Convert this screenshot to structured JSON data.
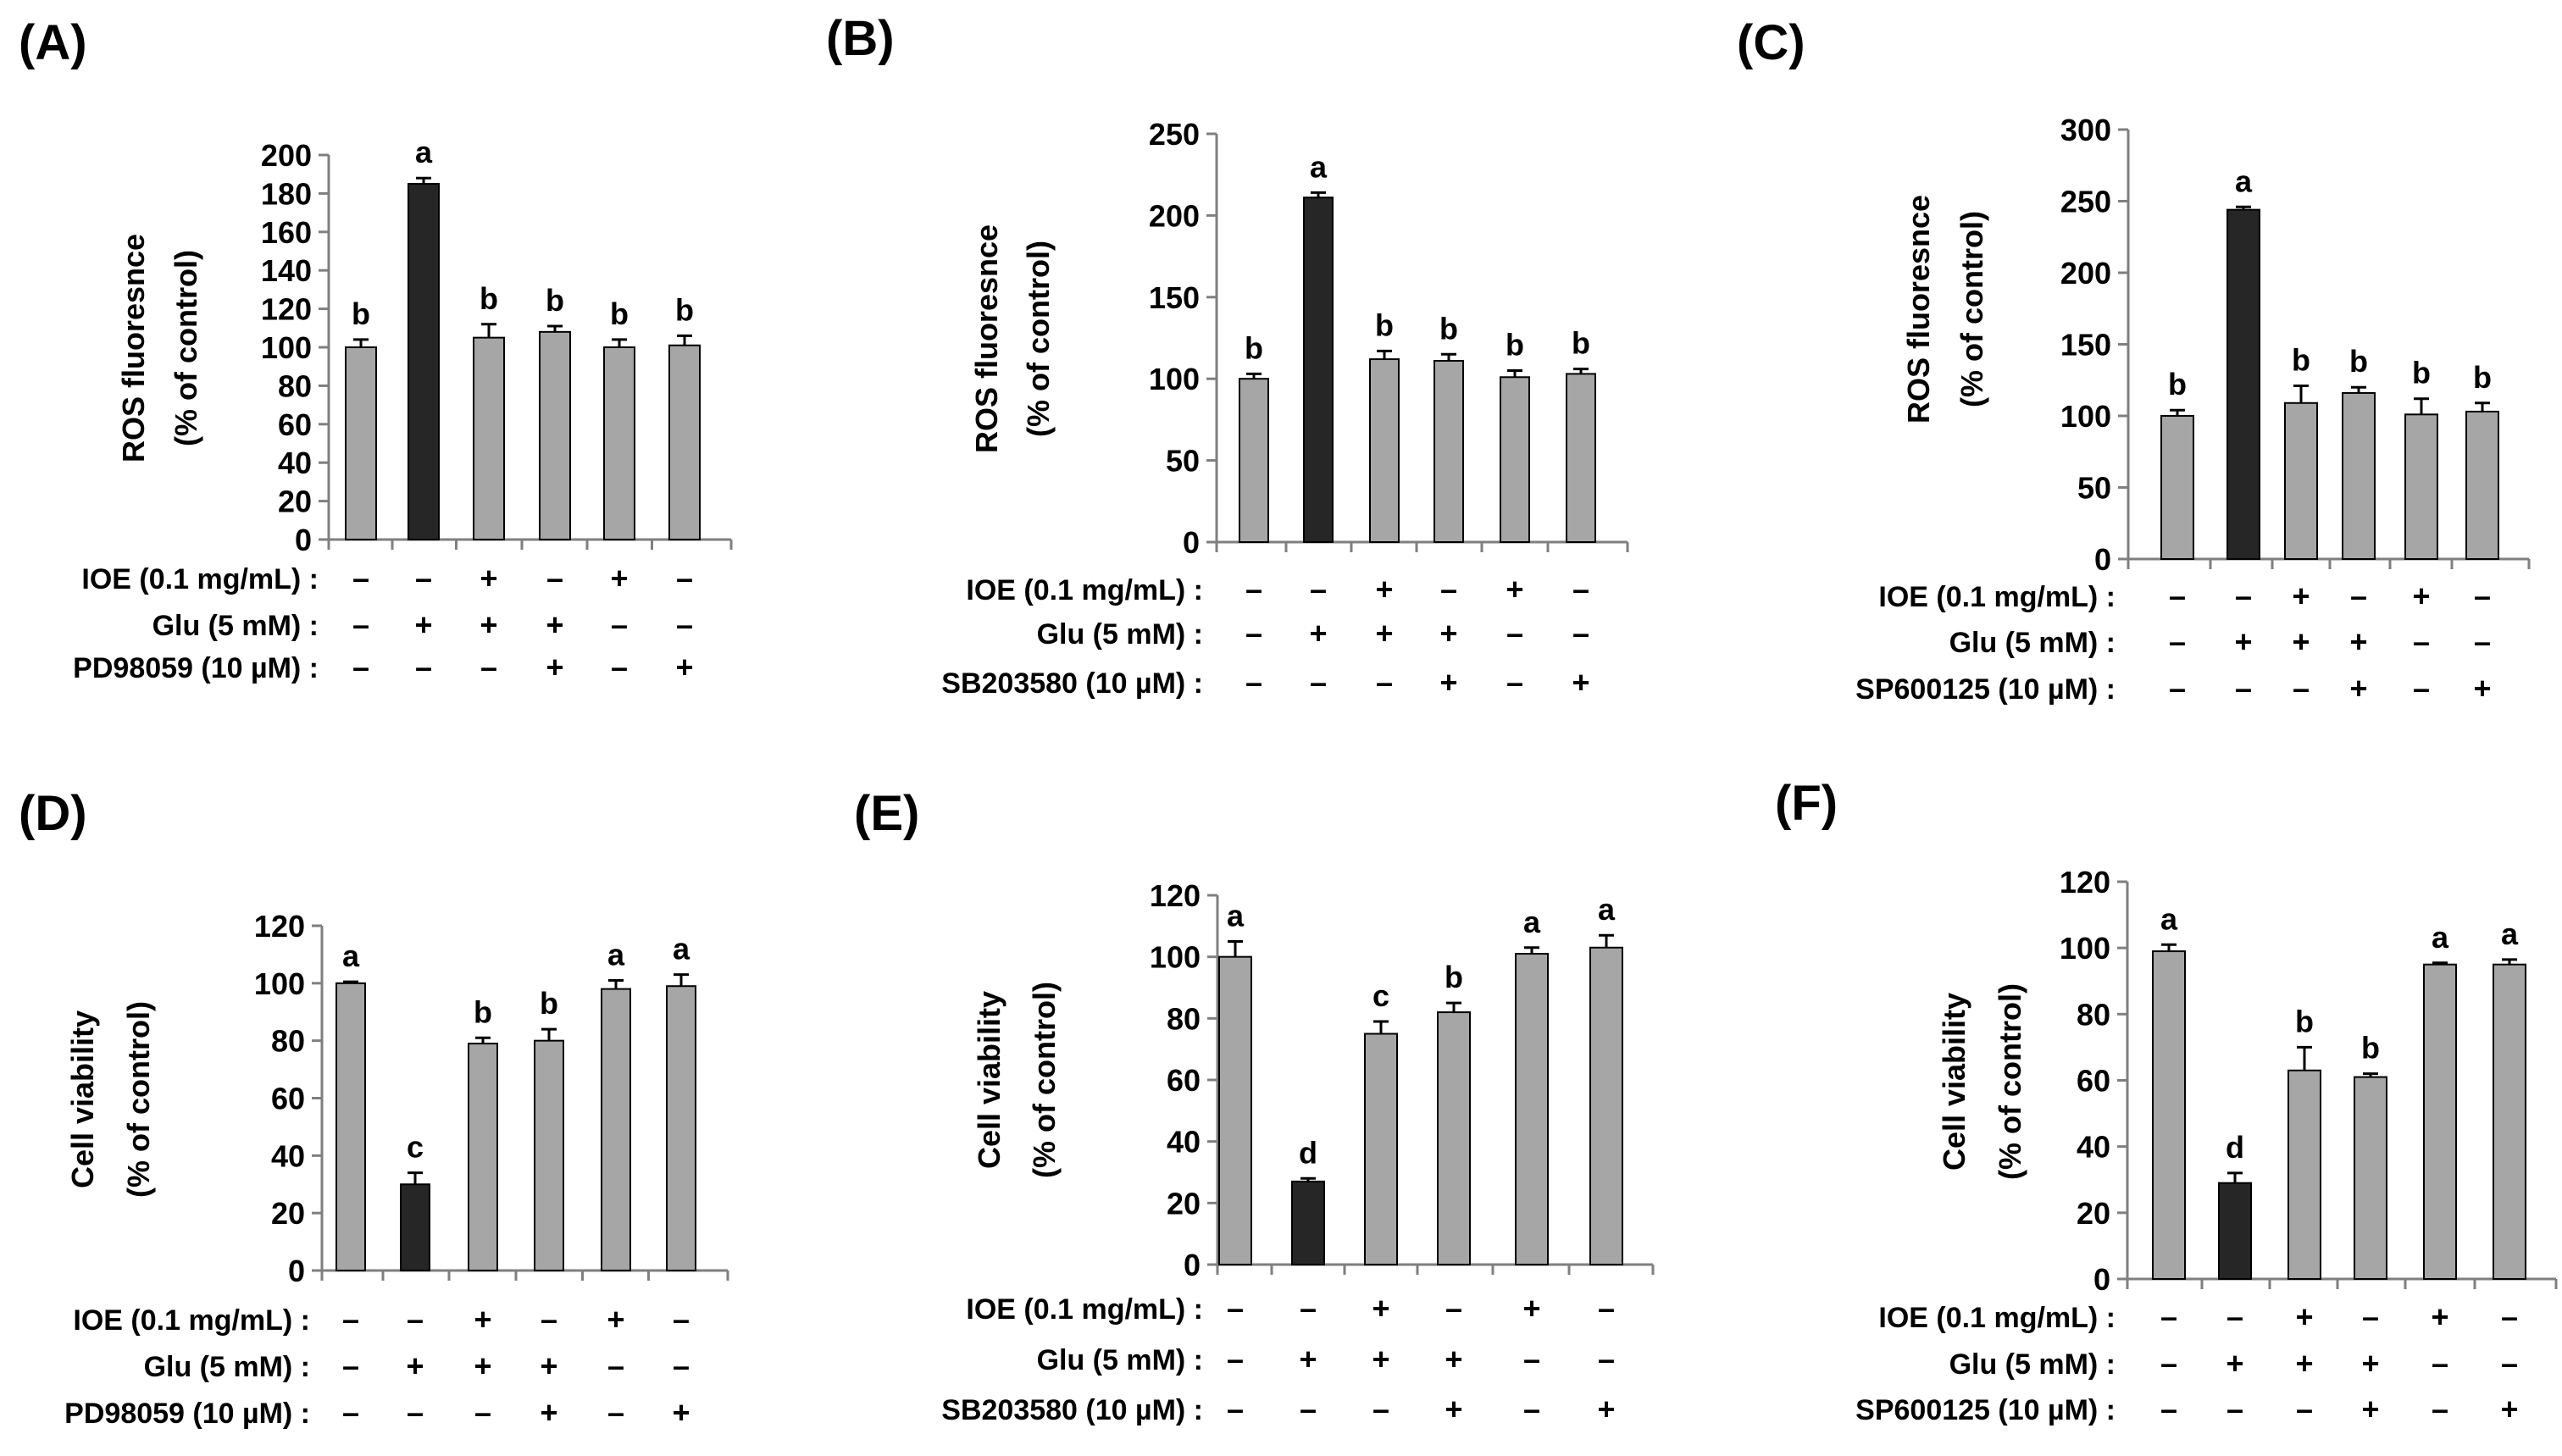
{
  "colors": {
    "gray": "#a6a6a6",
    "black": "#262626",
    "axis": "#7f7f7f",
    "text": "#000000"
  },
  "treatment_rows": [
    {
      "label": "IOE (0.1 mg/mL) :",
      "symbols": [
        "–",
        "–",
        "+",
        "–",
        "+",
        "–"
      ]
    },
    {
      "label": "Glu (5 mM) :",
      "symbols": [
        "–",
        "+",
        "+",
        "+",
        "–",
        "–"
      ]
    }
  ],
  "chart_data": [
    {
      "panel": "(A)",
      "type": "bar",
      "ylabel_lines": [
        "ROS fluoresnce",
        "(% of control)"
      ],
      "ylim": [
        0,
        200
      ],
      "yticks": [
        0,
        20,
        40,
        60,
        80,
        100,
        120,
        140,
        160,
        180,
        200
      ],
      "values": [
        100,
        185,
        105,
        108,
        100,
        101
      ],
      "errors": [
        4,
        3,
        7,
        3,
        4,
        5
      ],
      "letters": [
        "b",
        "a",
        "b",
        "b",
        "b",
        "b"
      ],
      "inhibitor_row": {
        "label": "PD98059 (10 µM) :",
        "symbols": [
          "–",
          "–",
          "–",
          "+",
          "–",
          "+"
        ]
      }
    },
    {
      "panel": "(B)",
      "type": "bar",
      "ylabel_lines": [
        "ROS fluoresnce",
        "(% of control)"
      ],
      "ylim": [
        0,
        250
      ],
      "yticks": [
        0,
        50,
        100,
        150,
        200,
        250
      ],
      "values": [
        100,
        211,
        112,
        111,
        101,
        103
      ],
      "errors": [
        3,
        3,
        5,
        4,
        4,
        3
      ],
      "letters": [
        "b",
        "a",
        "b",
        "b",
        "b",
        "b"
      ],
      "inhibitor_row": {
        "label": "SB203580 (10 µM) :",
        "symbols": [
          "–",
          "–",
          "–",
          "+",
          "–",
          "+"
        ]
      }
    },
    {
      "panel": "(C)",
      "type": "bar",
      "ylabel_lines": [
        "ROS fluoresnce",
        "(% of control)"
      ],
      "ylim": [
        0,
        300
      ],
      "yticks": [
        0,
        50,
        100,
        150,
        200,
        250,
        300
      ],
      "values": [
        100,
        244,
        109,
        116,
        101,
        103
      ],
      "errors": [
        4,
        2,
        12,
        4,
        11,
        6
      ],
      "letters": [
        "b",
        "a",
        "b",
        "b",
        "b",
        "b"
      ],
      "inhibitor_row": {
        "label": "SP600125 (10 µM) :",
        "symbols": [
          "–",
          "–",
          "–",
          "+",
          "–",
          "+"
        ]
      }
    },
    {
      "panel": "(D)",
      "type": "bar",
      "ylabel_lines": [
        "Cell  viability",
        "(% of control)"
      ],
      "ylim": [
        0,
        120
      ],
      "yticks": [
        0,
        20,
        40,
        60,
        80,
        100,
        120
      ],
      "values": [
        100,
        30,
        79,
        80,
        98,
        99
      ],
      "errors": [
        0.5,
        4,
        2,
        4,
        3,
        4
      ],
      "letters": [
        "a",
        "c",
        "b",
        "b",
        "a",
        "a"
      ],
      "inhibitor_row": {
        "label": "PD98059 (10 µM) :",
        "symbols": [
          "–",
          "–",
          "–",
          "+",
          "–",
          "+"
        ]
      }
    },
    {
      "panel": "(E)",
      "type": "bar",
      "ylabel_lines": [
        "Cell  viability",
        "(% of control)"
      ],
      "ylim": [
        0,
        120
      ],
      "yticks": [
        0,
        20,
        40,
        60,
        80,
        100,
        120
      ],
      "values": [
        100,
        27,
        75,
        82,
        101,
        103
      ],
      "errors": [
        5,
        1,
        4,
        3,
        2,
        4
      ],
      "letters": [
        "a",
        "d",
        "c",
        "b",
        "a",
        "a"
      ],
      "inhibitor_row": {
        "label": "SB203580 (10 µM) :",
        "symbols": [
          "–",
          "–",
          "–",
          "+",
          "–",
          "+"
        ]
      }
    },
    {
      "panel": "(F)",
      "type": "bar",
      "ylabel_lines": [
        "Cell  viability",
        "(% of control)"
      ],
      "ylim": [
        0,
        120
      ],
      "yticks": [
        0,
        20,
        40,
        60,
        80,
        100,
        120
      ],
      "values": [
        99,
        29,
        63,
        61,
        95,
        95
      ],
      "errors": [
        2,
        3,
        7,
        1,
        0.5,
        1.5
      ],
      "letters": [
        "a",
        "d",
        "b",
        "b",
        "a",
        "a"
      ],
      "inhibitor_row": {
        "label": "SP600125 (10 µM) :",
        "symbols": [
          "–",
          "–",
          "–",
          "+",
          "–",
          "+"
        ]
      }
    }
  ]
}
